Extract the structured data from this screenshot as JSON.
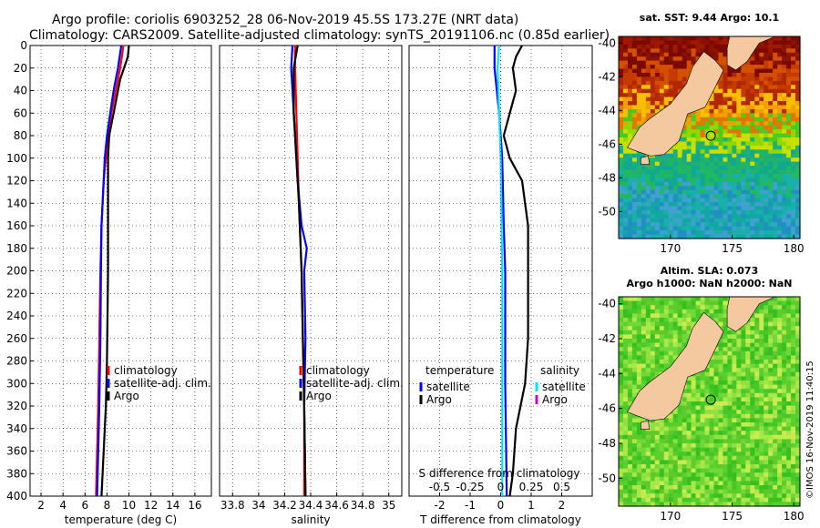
{
  "title_line1": "Argo profile: coriolis 6903252_28 06-Nov-2019 45.5S 173.27E (NRT data)",
  "title_line2": "Climatology: CARS2009. Satellite-adjusted climatology: synTS_20191106.nc (0.85d earlier)",
  "copyright": "©IMOS 16-Nov-2019 11:40:15",
  "colors": {
    "climatology": "#ff0000",
    "satellite": "#0000ff",
    "argo": "#000000",
    "cyan": "#00e5ff",
    "magenta": "#cc00cc",
    "land": "#f5c9a0"
  },
  "chart_data": [
    {
      "type": "line",
      "name": "temperature",
      "xlabel": "temperature (deg C)",
      "xlim": [
        1,
        17.5
      ],
      "xticks": [
        2,
        4,
        6,
        8,
        10,
        12,
        14,
        16
      ],
      "ylim": [
        0,
        400
      ],
      "yticks": [
        0,
        20,
        40,
        60,
        80,
        100,
        120,
        140,
        160,
        180,
        200,
        220,
        240,
        260,
        280,
        300,
        320,
        340,
        360,
        380,
        400
      ],
      "legend": [
        "climatology",
        "satellite-adj. clim.",
        "Argo"
      ],
      "series": [
        {
          "name": "climatology",
          "color": "#ff0000",
          "points": [
            [
              9.5,
              0
            ],
            [
              9.2,
              20
            ],
            [
              8.8,
              40
            ],
            [
              8.4,
              60
            ],
            [
              8.1,
              80
            ],
            [
              7.9,
              100
            ],
            [
              7.7,
              120
            ],
            [
              7.6,
              140
            ],
            [
              7.5,
              160
            ],
            [
              7.4,
              200
            ],
            [
              7.3,
              260
            ],
            [
              7.2,
              320
            ],
            [
              7.1,
              360
            ],
            [
              7.0,
              400
            ]
          ]
        },
        {
          "name": "satellite-adj. clim.",
          "color": "#0000ff",
          "points": [
            [
              9.3,
              0
            ],
            [
              9.0,
              20
            ],
            [
              8.6,
              40
            ],
            [
              8.3,
              60
            ],
            [
              8.0,
              80
            ],
            [
              7.8,
              100
            ],
            [
              7.7,
              120
            ],
            [
              7.6,
              140
            ],
            [
              7.5,
              160
            ],
            [
              7.45,
              200
            ],
            [
              7.4,
              260
            ],
            [
              7.3,
              320
            ],
            [
              7.2,
              360
            ],
            [
              7.1,
              400
            ]
          ]
        },
        {
          "name": "Argo",
          "color": "#000000",
          "points": [
            [
              10.0,
              0
            ],
            [
              9.9,
              10
            ],
            [
              9.2,
              30
            ],
            [
              8.6,
              60
            ],
            [
              8.2,
              80
            ],
            [
              8.1,
              100
            ],
            [
              8.1,
              140
            ],
            [
              8.1,
              200
            ],
            [
              8.0,
              280
            ],
            [
              7.9,
              320
            ],
            [
              7.7,
              360
            ],
            [
              7.5,
              400
            ]
          ]
        }
      ]
    },
    {
      "type": "line",
      "name": "salinity",
      "xlabel": "salinity",
      "xlim": [
        33.7,
        35.1
      ],
      "xticks": [
        33.8,
        34,
        34.2,
        34.4,
        34.6,
        34.8,
        35
      ],
      "ylim": [
        0,
        400
      ],
      "legend": [
        "climatology",
        "satellite-adj. clim.",
        "Argo"
      ],
      "series": [
        {
          "name": "climatology",
          "color": "#ff0000",
          "points": [
            [
              34.28,
              0
            ],
            [
              34.28,
              20
            ],
            [
              34.29,
              60
            ],
            [
              34.3,
              100
            ],
            [
              34.31,
              140
            ],
            [
              34.33,
              200
            ],
            [
              34.34,
              260
            ],
            [
              34.35,
              320
            ],
            [
              34.35,
              400
            ]
          ]
        },
        {
          "name": "satellite-adj. clim.",
          "color": "#0000ff",
          "points": [
            [
              34.26,
              0
            ],
            [
              34.25,
              20
            ],
            [
              34.26,
              40
            ],
            [
              34.28,
              80
            ],
            [
              34.3,
              120
            ],
            [
              34.33,
              160
            ],
            [
              34.37,
              180
            ],
            [
              34.35,
              200
            ],
            [
              34.36,
              260
            ],
            [
              34.35,
              320
            ],
            [
              34.36,
              400
            ]
          ]
        },
        {
          "name": "Argo",
          "color": "#000000",
          "points": [
            [
              34.3,
              0
            ],
            [
              34.27,
              20
            ],
            [
              34.27,
              60
            ],
            [
              34.29,
              100
            ],
            [
              34.31,
              140
            ],
            [
              34.33,
              200
            ],
            [
              34.34,
              260
            ],
            [
              34.35,
              320
            ],
            [
              34.36,
              400
            ]
          ]
        }
      ]
    },
    {
      "type": "line",
      "name": "difference",
      "xlabel": "T difference from climatology",
      "xlim": [
        -3,
        3
      ],
      "xticks": [
        -2,
        -1,
        0,
        1,
        2
      ],
      "top_xlabel": "S difference from climatology",
      "top_xticks": [
        -0.5,
        -0.25,
        0,
        0.25,
        0.5
      ],
      "top_xtick_labels": [
        "-0.5",
        "-0.25",
        "0",
        "0.25",
        "0.5"
      ],
      "ylim": [
        0,
        400
      ],
      "legend_temperature": {
        "title": "temperature",
        "items": [
          "satellite",
          "Argo"
        ]
      },
      "legend_salinity": {
        "title": "salinity",
        "items": [
          "satellite",
          "Argo"
        ]
      },
      "series": [
        {
          "name": "T satellite",
          "color": "#0000ff",
          "points": [
            [
              -0.2,
              0
            ],
            [
              -0.2,
              20
            ],
            [
              -0.05,
              60
            ],
            [
              0.05,
              100
            ],
            [
              0.1,
              160
            ],
            [
              0.15,
              200
            ],
            [
              0.15,
              300
            ],
            [
              0.2,
              400
            ]
          ]
        },
        {
          "name": "S satellite",
          "color": "#00e5ff",
          "points": [
            [
              -0.05,
              0
            ],
            [
              -0.1,
              20
            ],
            [
              -0.05,
              60
            ],
            [
              0.0,
              100
            ],
            [
              0.05,
              200
            ],
            [
              0.05,
              300
            ],
            [
              0.05,
              400
            ]
          ]
        },
        {
          "name": "T Argo",
          "color": "#000000",
          "points": [
            [
              0.7,
              0
            ],
            [
              0.5,
              10
            ],
            [
              0.4,
              20
            ],
            [
              0.5,
              40
            ],
            [
              0.3,
              60
            ],
            [
              0.1,
              80
            ],
            [
              0.3,
              100
            ],
            [
              0.7,
              120
            ],
            [
              0.9,
              160
            ],
            [
              0.9,
              200
            ],
            [
              0.9,
              260
            ],
            [
              0.8,
              300
            ],
            [
              0.5,
              340
            ],
            [
              0.4,
              380
            ],
            [
              0.3,
              400
            ]
          ]
        },
        {
          "name": "S Argo",
          "color": "#cc00cc",
          "points": []
        }
      ]
    },
    {
      "type": "heatmap",
      "name": "sst_map",
      "title": "sat. SST: 9.44 Argo: 10.1",
      "xticks": [
        170,
        175,
        180
      ],
      "yticks": [
        -40,
        -42,
        -44,
        -46,
        -48,
        -50
      ],
      "xlim": [
        165.8,
        180.5
      ],
      "ylim": [
        -51.6,
        -39.6
      ],
      "argo_position": [
        173.27,
        -45.5
      ]
    },
    {
      "type": "heatmap",
      "name": "sla_map",
      "title_line1": "Altim. SLA: 0.073",
      "title_line2": "Argo h1000: NaN h2000: NaN",
      "xticks": [
        170,
        175,
        180
      ],
      "yticks": [
        -40,
        -42,
        -44,
        -46,
        -48,
        -50
      ],
      "xlim": [
        165.8,
        180.5
      ],
      "ylim": [
        -51.6,
        -39.6
      ],
      "argo_position": [
        173.27,
        -45.5
      ]
    }
  ]
}
